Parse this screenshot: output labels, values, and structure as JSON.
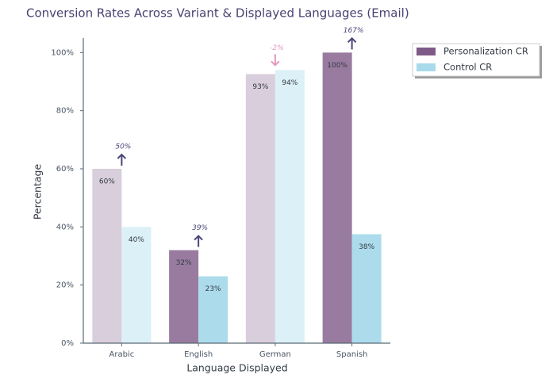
{
  "chart_data": {
    "type": "bar",
    "title": "Conversion Rates Across Variant & Displayed Languages (Email)",
    "xlabel": "Language Displayed",
    "ylabel": "Percentage",
    "categories": [
      "Arabic",
      "English",
      "German",
      "Spanish"
    ],
    "series": [
      {
        "name": "Personalization CR",
        "color": "#7f5a88",
        "values": [
          60,
          32,
          92.6,
          100
        ],
        "value_labels": [
          "60%",
          "32%",
          "93%",
          "100%"
        ]
      },
      {
        "name": "Control CR",
        "color": "#a8daeb",
        "values": [
          40,
          23,
          94,
          37.5
        ],
        "value_labels": [
          "40%",
          "23%",
          "94%",
          "38%"
        ]
      }
    ],
    "highlighted": [
      false,
      true,
      false,
      true
    ],
    "lift_labels": [
      "50%",
      "39%",
      "-2%",
      "167%"
    ],
    "ylim": [
      0,
      105
    ],
    "yticks": [
      {
        "value": 0,
        "label": "0%"
      },
      {
        "value": 20,
        "label": "20%"
      },
      {
        "value": 40,
        "label": "40%"
      },
      {
        "value": 60,
        "label": "60%"
      },
      {
        "value": 80,
        "label": "80%"
      },
      {
        "value": 100,
        "label": "100%"
      }
    ],
    "legend": "upper right outside"
  }
}
